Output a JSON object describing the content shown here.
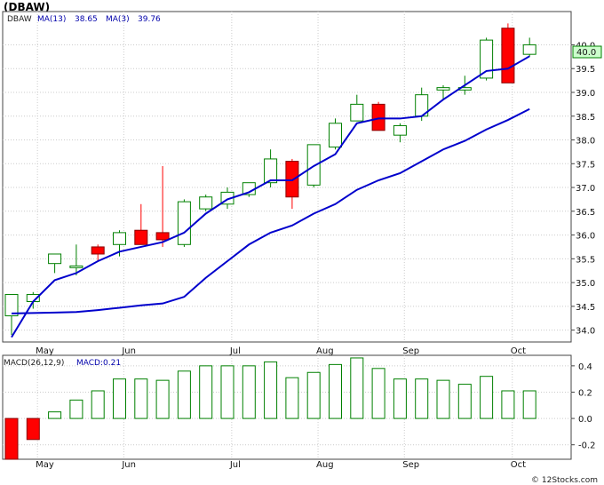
{
  "title": "(DBAW)",
  "legend": {
    "symbol": "DBAW",
    "ma13_label": "MA(13)",
    "ma13_value": "38.65",
    "ma3_label": "MA(3)",
    "ma3_value": "39.76"
  },
  "macd_legend": {
    "label": "MACD(26,12,9)",
    "value_label": "MACD:0.21"
  },
  "last_price_tag": "40.0",
  "watermark": "© 12Stocks.com",
  "colors": {
    "up_candle": "#008000",
    "down_candle": "#ff0000",
    "ma_line": "#0000cc",
    "macd_bar": "#008000",
    "macd_bar_negative": "#ff0000",
    "price_tag_bg": "#ccffcc"
  },
  "chart_data": [
    {
      "type": "candlestick",
      "title": "(DBAW)",
      "x_ticks": [
        "May",
        "Jun",
        "Jul",
        "Aug",
        "Sep",
        "Oct"
      ],
      "x_tick_positions": [
        1.2,
        5.2,
        10.2,
        14.2,
        18.2,
        23.2
      ],
      "y_ticks": [
        34.0,
        34.5,
        35.0,
        35.5,
        36.0,
        36.5,
        37.0,
        37.5,
        38.0,
        38.5,
        39.0,
        39.5,
        40.0
      ],
      "ylim": [
        33.75,
        40.7
      ],
      "grid": true,
      "candles": [
        {
          "open": 34.3,
          "high": 34.75,
          "low": 33.9,
          "close": 34.75
        },
        {
          "open": 34.6,
          "high": 34.8,
          "low": 34.45,
          "close": 34.75
        },
        {
          "open": 35.4,
          "high": 35.6,
          "low": 35.2,
          "close": 35.6
        },
        {
          "open": 35.35,
          "high": 35.8,
          "low": 35.15,
          "close": 35.35
        },
        {
          "open": 35.75,
          "high": 35.8,
          "low": 35.45,
          "close": 35.6
        },
        {
          "open": 35.8,
          "high": 36.1,
          "low": 35.55,
          "close": 36.05
        },
        {
          "open": 36.1,
          "high": 36.65,
          "low": 35.8,
          "close": 35.8
        },
        {
          "open": 36.05,
          "high": 37.45,
          "low": 35.75,
          "close": 35.9
        },
        {
          "open": 35.8,
          "high": 36.75,
          "low": 35.75,
          "close": 36.7
        },
        {
          "open": 36.55,
          "high": 36.85,
          "low": 36.5,
          "close": 36.8
        },
        {
          "open": 36.65,
          "high": 37.0,
          "low": 36.55,
          "close": 36.9
        },
        {
          "open": 36.85,
          "high": 37.05,
          "low": 36.8,
          "close": 37.1
        },
        {
          "open": 37.1,
          "high": 37.8,
          "low": 37.0,
          "close": 37.6
        },
        {
          "open": 37.55,
          "high": 37.6,
          "low": 36.55,
          "close": 36.8
        },
        {
          "open": 37.05,
          "high": 37.9,
          "low": 37.0,
          "close": 37.9
        },
        {
          "open": 37.85,
          "high": 38.45,
          "low": 37.8,
          "close": 38.35
        },
        {
          "open": 38.4,
          "high": 38.95,
          "low": 38.4,
          "close": 38.75
        },
        {
          "open": 38.75,
          "high": 38.8,
          "low": 38.2,
          "close": 38.2
        },
        {
          "open": 38.1,
          "high": 38.35,
          "low": 37.95,
          "close": 38.3
        },
        {
          "open": 38.5,
          "high": 39.1,
          "low": 38.4,
          "close": 38.95
        },
        {
          "open": 39.05,
          "high": 39.15,
          "low": 38.85,
          "close": 39.1
        },
        {
          "open": 39.05,
          "high": 39.35,
          "low": 38.95,
          "close": 39.1
        },
        {
          "open": 39.3,
          "high": 40.15,
          "low": 39.25,
          "close": 40.1
        },
        {
          "open": 40.35,
          "high": 40.45,
          "low": 39.2,
          "close": 39.2
        },
        {
          "open": 39.8,
          "high": 40.15,
          "low": 39.75,
          "close": 40.0
        }
      ],
      "series": [
        {
          "name": "MA(3)",
          "values": [
            33.85,
            34.6,
            35.05,
            35.2,
            35.45,
            35.65,
            35.75,
            35.85,
            36.05,
            36.45,
            36.75,
            36.9,
            37.15,
            37.15,
            37.45,
            37.7,
            38.35,
            38.45,
            38.45,
            38.5,
            38.85,
            39.15,
            39.45,
            39.5,
            39.76
          ]
        },
        {
          "name": "MA(13)",
          "values": [
            34.35,
            34.36,
            34.37,
            34.38,
            34.42,
            34.47,
            34.52,
            34.56,
            34.7,
            35.1,
            35.45,
            35.8,
            36.05,
            36.2,
            36.45,
            36.65,
            36.95,
            37.15,
            37.3,
            37.55,
            37.8,
            37.98,
            38.22,
            38.42,
            38.65
          ]
        }
      ]
    },
    {
      "type": "bar",
      "title": "MACD(26,12,9)",
      "y_ticks": [
        -0.2,
        0.0,
        0.2,
        0.4
      ],
      "ylim": [
        -0.31,
        0.48
      ],
      "x_ticks": [
        "May",
        "Jun",
        "Jul",
        "Aug",
        "Sep",
        "Oct"
      ],
      "values": [
        -0.31,
        -0.16,
        0.05,
        0.14,
        0.21,
        0.3,
        0.3,
        0.29,
        0.36,
        0.4,
        0.4,
        0.4,
        0.43,
        0.31,
        0.35,
        0.41,
        0.46,
        0.38,
        0.3,
        0.3,
        0.29,
        0.26,
        0.32,
        0.21,
        0.21
      ]
    }
  ]
}
